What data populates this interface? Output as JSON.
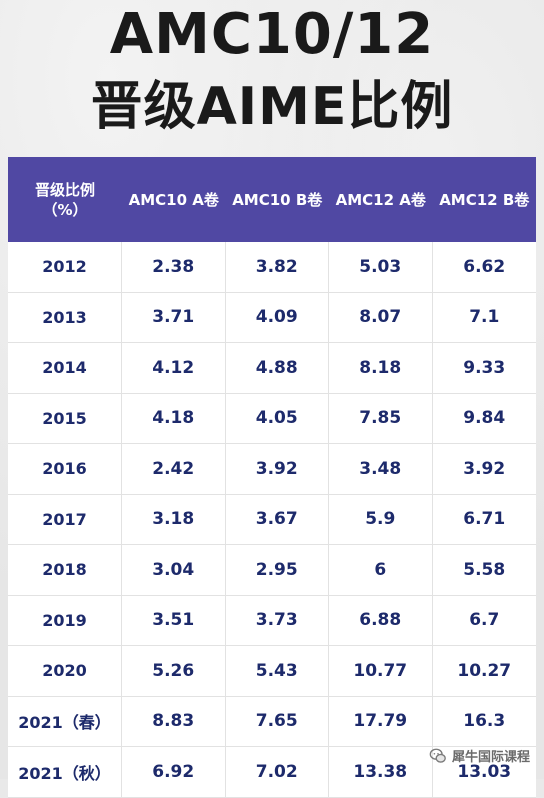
{
  "title": {
    "line1": "AMC10/12",
    "line2": "晋级AIME比例"
  },
  "table": {
    "header_first_line1": "晋级比例",
    "header_first_line2": "（%）",
    "columns": [
      "AMC10 A卷",
      "AMC10 B卷",
      "AMC12 A卷",
      "AMC12 B卷"
    ],
    "rows": [
      {
        "year": "2012",
        "values": [
          "2.38",
          "3.82",
          "5.03",
          "6.62"
        ]
      },
      {
        "year": "2013",
        "values": [
          "3.71",
          "4.09",
          "8.07",
          "7.1"
        ]
      },
      {
        "year": "2014",
        "values": [
          "4.12",
          "4.88",
          "8.18",
          "9.33"
        ]
      },
      {
        "year": "2015",
        "values": [
          "4.18",
          "4.05",
          "7.85",
          "9.84"
        ]
      },
      {
        "year": "2016",
        "values": [
          "2.42",
          "3.92",
          "3.48",
          "3.92"
        ]
      },
      {
        "year": "2017",
        "values": [
          "3.18",
          "3.67",
          "5.9",
          "6.71"
        ]
      },
      {
        "year": "2018",
        "values": [
          "3.04",
          "2.95",
          "6",
          "5.58"
        ]
      },
      {
        "year": "2019",
        "values": [
          "3.51",
          "3.73",
          "6.88",
          "6.7"
        ]
      },
      {
        "year": "2020",
        "values": [
          "5.26",
          "5.43",
          "10.77",
          "10.27"
        ]
      },
      {
        "year": "2021（春）",
        "values": [
          "8.83",
          "7.65",
          "17.79",
          "16.3"
        ]
      },
      {
        "year": "2021（秋）",
        "values": [
          "6.92",
          "7.02",
          "13.38",
          "13.03"
        ]
      }
    ]
  },
  "watermark": {
    "text": "犀牛国际课程",
    "icon": "chat-bubble-icon"
  },
  "colors": {
    "header_bg": "#5048a3",
    "cell_text": "#1d2a6b",
    "title_text": "#1a1a1a"
  }
}
